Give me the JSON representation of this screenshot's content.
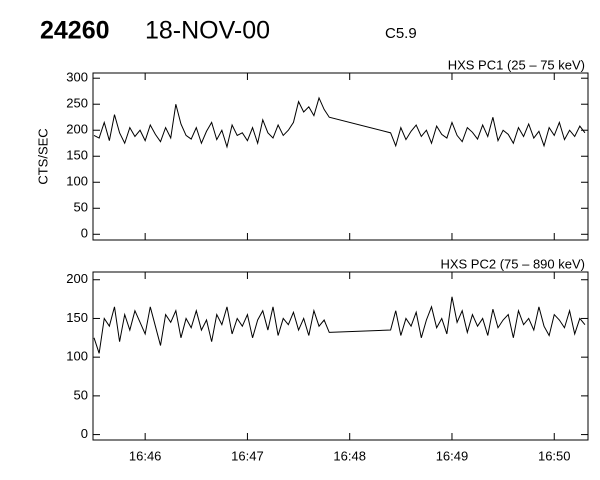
{
  "header": {
    "id": "24260",
    "date": "18-NOV-00",
    "flare_class": "C5.9"
  },
  "chart_data": [
    {
      "type": "line",
      "title": "HXS PC1 (25 – 75 keV)",
      "ylabel": "CTS/SEC",
      "color": "#000000",
      "xlim": [
        1005.49,
        1010.33
      ],
      "xticks": [
        1006,
        1007,
        1008,
        1009,
        1010
      ],
      "ylim": [
        -11,
        310
      ],
      "yticks": [
        0,
        50,
        100,
        150,
        200,
        250,
        300
      ],
      "x": [
        1005.5,
        1005.55,
        1005.6,
        1005.65,
        1005.7,
        1005.75,
        1005.8,
        1005.85,
        1005.9,
        1005.95,
        1006,
        1006.05,
        1006.1,
        1006.15,
        1006.2,
        1006.25,
        1006.3,
        1006.35,
        1006.4,
        1006.45,
        1006.5,
        1006.55,
        1006.6,
        1006.65,
        1006.7,
        1006.75,
        1006.8,
        1006.85,
        1006.9,
        1006.95,
        1007,
        1007.05,
        1007.1,
        1007.15,
        1007.2,
        1007.25,
        1007.3,
        1007.35,
        1007.4,
        1007.45,
        1007.5,
        1007.55,
        1007.6,
        1007.65,
        1007.7,
        1007.75,
        1007.8,
        1008.4,
        1008.45,
        1008.5,
        1008.55,
        1008.6,
        1008.65,
        1008.7,
        1008.75,
        1008.8,
        1008.85,
        1008.9,
        1008.95,
        1009,
        1009.05,
        1009.1,
        1009.15,
        1009.2,
        1009.25,
        1009.3,
        1009.35,
        1009.4,
        1009.45,
        1009.5,
        1009.55,
        1009.6,
        1009.65,
        1009.7,
        1009.75,
        1009.8,
        1009.85,
        1009.9,
        1009.95,
        1010,
        1010.05,
        1010.1,
        1010.15,
        1010.2,
        1010.25,
        1010.3
      ],
      "values": [
        190,
        185,
        215,
        180,
        230,
        195,
        175,
        205,
        188,
        200,
        180,
        210,
        192,
        178,
        205,
        185,
        250,
        212,
        190,
        183,
        205,
        175,
        198,
        215,
        182,
        200,
        168,
        210,
        190,
        195,
        180,
        205,
        175,
        220,
        195,
        185,
        210,
        190,
        200,
        215,
        255,
        235,
        245,
        228,
        262,
        240,
        225,
        195,
        170,
        205,
        182,
        198,
        210,
        188,
        200,
        175,
        208,
        192,
        185,
        215,
        190,
        178,
        205,
        196,
        183,
        210,
        188,
        225,
        180,
        200,
        192,
        175,
        205,
        188,
        212,
        185,
        198,
        170,
        205,
        190,
        215,
        182,
        200,
        188,
        208,
        195
      ]
    },
    {
      "type": "line",
      "title": "HXS PC2 (75 – 890 keV)",
      "color": "#000000",
      "xlim": [
        1005.49,
        1010.33
      ],
      "xticks": [
        {
          "value": 1006,
          "label": "16:46"
        },
        {
          "value": 1007,
          "label": "16:47"
        },
        {
          "value": 1008,
          "label": "16:48"
        },
        {
          "value": 1009,
          "label": "16:49"
        },
        {
          "value": 1010,
          "label": "16:50"
        }
      ],
      "ylim": [
        -7,
        210
      ],
      "yticks": [
        0,
        50,
        100,
        150,
        200
      ],
      "x": [
        1005.5,
        1005.55,
        1005.6,
        1005.65,
        1005.7,
        1005.75,
        1005.8,
        1005.85,
        1005.9,
        1005.95,
        1006,
        1006.05,
        1006.1,
        1006.15,
        1006.2,
        1006.25,
        1006.3,
        1006.35,
        1006.4,
        1006.45,
        1006.5,
        1006.55,
        1006.6,
        1006.65,
        1006.7,
        1006.75,
        1006.8,
        1006.85,
        1006.9,
        1006.95,
        1007,
        1007.05,
        1007.1,
        1007.15,
        1007.2,
        1007.25,
        1007.3,
        1007.35,
        1007.4,
        1007.45,
        1007.5,
        1007.55,
        1007.6,
        1007.65,
        1007.7,
        1007.75,
        1007.8,
        1008.4,
        1008.45,
        1008.5,
        1008.55,
        1008.6,
        1008.65,
        1008.7,
        1008.75,
        1008.8,
        1008.85,
        1008.9,
        1008.95,
        1009,
        1009.05,
        1009.1,
        1009.15,
        1009.2,
        1009.25,
        1009.3,
        1009.35,
        1009.4,
        1009.45,
        1009.5,
        1009.55,
        1009.6,
        1009.65,
        1009.7,
        1009.75,
        1009.8,
        1009.85,
        1009.9,
        1009.95,
        1010,
        1010.05,
        1010.1,
        1010.15,
        1010.2,
        1010.25,
        1010.3
      ],
      "values": [
        125,
        105,
        150,
        140,
        165,
        120,
        155,
        135,
        160,
        145,
        130,
        165,
        140,
        115,
        155,
        145,
        160,
        125,
        150,
        138,
        160,
        135,
        148,
        120,
        155,
        142,
        165,
        130,
        150,
        140,
        155,
        125,
        148,
        160,
        135,
        165,
        128,
        150,
        142,
        158,
        135,
        150,
        128,
        160,
        140,
        148,
        132,
        135,
        160,
        128,
        150,
        140,
        158,
        125,
        148,
        165,
        138,
        150,
        130,
        178,
        145,
        160,
        132,
        155,
        140,
        150,
        128,
        162,
        138,
        148,
        155,
        125,
        160,
        142,
        150,
        135,
        165,
        140,
        128,
        155,
        148,
        138,
        160,
        130,
        150,
        142
      ]
    }
  ]
}
